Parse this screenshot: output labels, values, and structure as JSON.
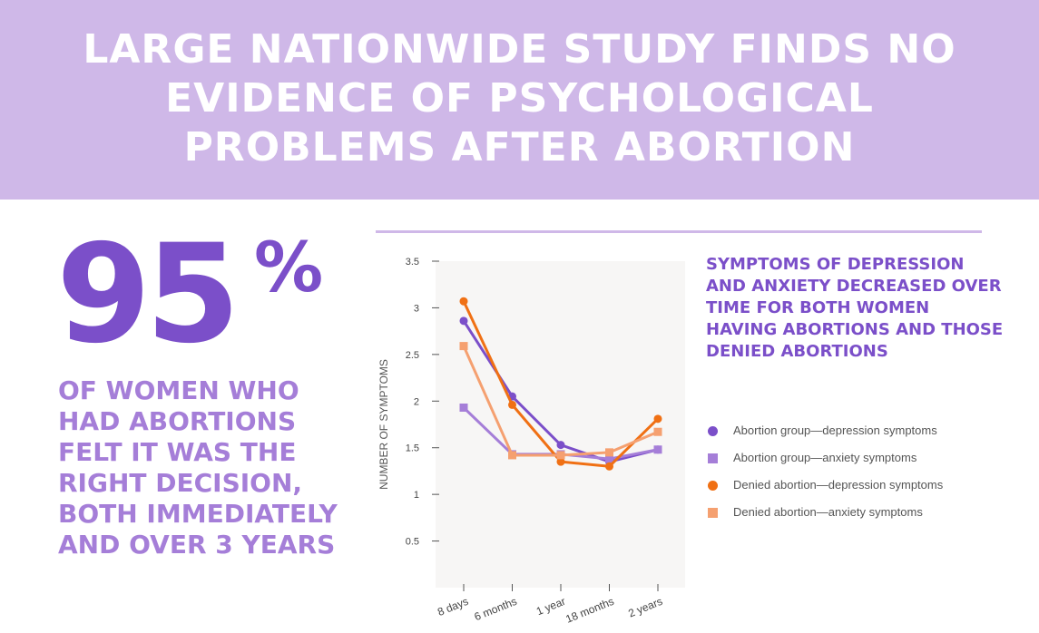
{
  "banner": {
    "title": "Large nationwide study finds no evidence of psychological problems after abortion"
  },
  "stat": {
    "number": "95",
    "sign": "%",
    "text": "of women who had abortions felt it was the right decision, both immediately and over 3 years"
  },
  "colors": {
    "banner_bg": "#cfb8e8",
    "accent_purple": "#7b4fc9",
    "light_purple": "#a57ed8",
    "orange": "#f07014",
    "light_orange": "#f5a070"
  },
  "chart_heading": "Symptoms of depression and anxiety decreased over time for both women having abortions and those denied abortions",
  "chart_data": {
    "type": "line",
    "x": [
      "8 days",
      "6 months",
      "1 year",
      "18 months",
      "2 years"
    ],
    "ylabel": "NUMBER OF SYMPTOMS",
    "ylim": [
      0,
      3.5
    ],
    "yticks": [
      "3.5",
      "3",
      "2.5",
      "2",
      "1.5",
      "1",
      "0.5"
    ],
    "grid": false,
    "legend_position": "right",
    "series": [
      {
        "name": "Abortion group—depression symptoms",
        "marker": "circle",
        "color": "#7b4fc9",
        "values": [
          2.86,
          2.05,
          1.53,
          1.35,
          1.48
        ]
      },
      {
        "name": "Abortion group—anxiety symptoms",
        "marker": "square",
        "color": "#a57ed8",
        "values": [
          1.93,
          1.43,
          1.43,
          1.38,
          1.48
        ]
      },
      {
        "name": "Denied abortion—depression symptoms",
        "marker": "circle",
        "color": "#f07014",
        "values": [
          3.07,
          1.96,
          1.35,
          1.3,
          1.81
        ]
      },
      {
        "name": "Denied abortion—anxiety symptoms",
        "marker": "square",
        "color": "#f5a070",
        "values": [
          2.59,
          1.42,
          1.42,
          1.45,
          1.67
        ]
      }
    ]
  }
}
